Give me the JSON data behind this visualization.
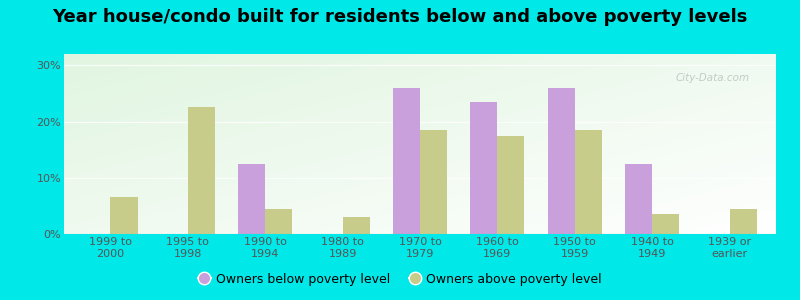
{
  "title": "Year house/condo built for residents below and above poverty levels",
  "categories": [
    "1999 to\n2000",
    "1995 to\n1998",
    "1990 to\n1994",
    "1980 to\n1989",
    "1970 to\n1979",
    "1960 to\n1969",
    "1950 to\n1959",
    "1940 to\n1949",
    "1939 or\nearlier"
  ],
  "below_poverty": [
    0,
    0,
    12.5,
    0,
    26.0,
    23.5,
    26.0,
    12.5,
    0
  ],
  "above_poverty": [
    6.5,
    22.5,
    4.5,
    3.0,
    18.5,
    17.5,
    18.5,
    3.5,
    4.5
  ],
  "below_color": "#c9a0dc",
  "above_color": "#c8cc8a",
  "background_color": "#00e8e8",
  "yticks": [
    0,
    10,
    20,
    30
  ],
  "ylim": [
    0,
    32
  ],
  "bar_width": 0.35,
  "legend_below_label": "Owners below poverty level",
  "legend_above_label": "Owners above poverty level",
  "title_fontsize": 13,
  "tick_fontsize": 8,
  "legend_fontsize": 9,
  "tick_color": "#555555"
}
